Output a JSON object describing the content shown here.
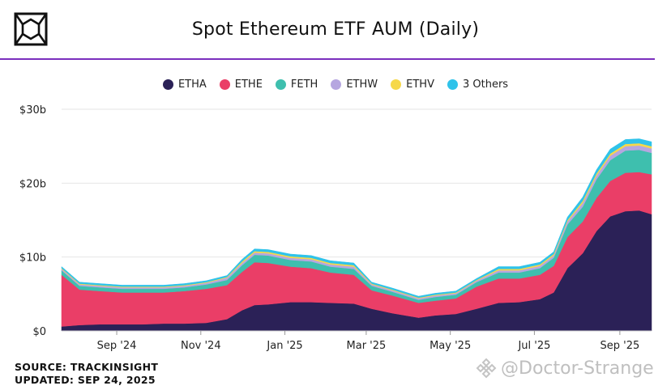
{
  "title": "Spot Ethereum ETF AUM (Daily)",
  "footer": {
    "source": "SOURCE: TRACKINSIGHT",
    "updated": "UPDATED: SEP 24, 2025"
  },
  "watermark": {
    "text": "@Doctor-Strange",
    "icon": "binance-logo-icon"
  },
  "logo_icon": "cube-logo-icon",
  "colors": {
    "accent_rule": "#7b2fbe",
    "grid": "#e6e6e6"
  },
  "chart_data": {
    "type": "area",
    "stacked": true,
    "title": "Spot Ethereum ETF AUM (Daily)",
    "legend_position": "top-center",
    "grid": true,
    "x_domain": [
      "2024-07-23",
      "2025-09-24"
    ],
    "ylim": [
      0,
      30
    ],
    "y_unit": "b",
    "y_ticks": [
      {
        "value": 0,
        "label": "$0"
      },
      {
        "value": 10,
        "label": "$10b"
      },
      {
        "value": 20,
        "label": "$20b"
      },
      {
        "value": 30,
        "label": "$30b"
      }
    ],
    "x_ticks": [
      {
        "date": "2024-09-01",
        "label": "Sep '24"
      },
      {
        "date": "2024-11-01",
        "label": "Nov '24"
      },
      {
        "date": "2025-01-01",
        "label": "Jan '25"
      },
      {
        "date": "2025-03-01",
        "label": "Mar '25"
      },
      {
        "date": "2025-05-01",
        "label": "May '25"
      },
      {
        "date": "2025-07-01",
        "label": "Jul '25"
      },
      {
        "date": "2025-09-01",
        "label": "Sep '25"
      }
    ],
    "dates": [
      "2024-07-23",
      "2024-08-05",
      "2024-08-20",
      "2024-09-05",
      "2024-09-20",
      "2024-10-05",
      "2024-10-20",
      "2024-11-05",
      "2024-11-20",
      "2024-12-01",
      "2024-12-10",
      "2024-12-20",
      "2025-01-05",
      "2025-01-20",
      "2025-02-03",
      "2025-02-20",
      "2025-03-05",
      "2025-03-20",
      "2025-04-08",
      "2025-04-20",
      "2025-05-05",
      "2025-05-20",
      "2025-06-05",
      "2025-06-20",
      "2025-07-05",
      "2025-07-15",
      "2025-07-25",
      "2025-08-05",
      "2025-08-15",
      "2025-08-25",
      "2025-09-05",
      "2025-09-15",
      "2025-09-24"
    ],
    "series": [
      {
        "name": "ETHA",
        "color": "#2b2157",
        "values": [
          0.6,
          0.8,
          0.9,
          0.9,
          0.9,
          1.0,
          1.0,
          1.1,
          1.6,
          2.8,
          3.5,
          3.6,
          3.9,
          3.9,
          3.8,
          3.7,
          3.0,
          2.4,
          1.8,
          2.1,
          2.3,
          3.0,
          3.8,
          3.9,
          4.3,
          5.2,
          8.5,
          10.5,
          13.5,
          15.5,
          16.2,
          16.3,
          15.8
        ]
      },
      {
        "name": "ETHE",
        "color": "#ea3e67",
        "values": [
          7.0,
          4.8,
          4.5,
          4.3,
          4.3,
          4.2,
          4.4,
          4.6,
          4.6,
          5.2,
          5.8,
          5.6,
          4.8,
          4.6,
          4.1,
          3.9,
          2.5,
          2.4,
          2.0,
          2.0,
          2.1,
          3.0,
          3.3,
          3.2,
          3.3,
          3.6,
          4.2,
          4.3,
          4.5,
          4.8,
          5.2,
          5.2,
          5.4
        ]
      },
      {
        "name": "FETH",
        "color": "#3ebfae",
        "values": [
          0.6,
          0.5,
          0.5,
          0.5,
          0.5,
          0.5,
          0.5,
          0.6,
          0.7,
          0.9,
          1.0,
          1.0,
          0.9,
          0.9,
          0.8,
          0.8,
          0.6,
          0.5,
          0.4,
          0.5,
          0.5,
          0.6,
          0.8,
          0.8,
          0.9,
          1.1,
          1.7,
          2.0,
          2.5,
          2.8,
          3.0,
          3.0,
          2.9
        ]
      },
      {
        "name": "ETHW",
        "color": "#b6a6e0",
        "values": [
          0.2,
          0.2,
          0.2,
          0.2,
          0.2,
          0.2,
          0.2,
          0.2,
          0.3,
          0.3,
          0.3,
          0.3,
          0.3,
          0.3,
          0.3,
          0.3,
          0.2,
          0.2,
          0.2,
          0.2,
          0.2,
          0.2,
          0.3,
          0.3,
          0.3,
          0.3,
          0.4,
          0.5,
          0.5,
          0.6,
          0.6,
          0.6,
          0.6
        ]
      },
      {
        "name": "ETHV",
        "color": "#f6d84a",
        "values": [
          0.1,
          0.1,
          0.1,
          0.1,
          0.1,
          0.1,
          0.1,
          0.1,
          0.1,
          0.2,
          0.2,
          0.2,
          0.2,
          0.2,
          0.2,
          0.2,
          0.1,
          0.1,
          0.1,
          0.1,
          0.1,
          0.1,
          0.2,
          0.2,
          0.2,
          0.2,
          0.2,
          0.3,
          0.3,
          0.3,
          0.3,
          0.3,
          0.3
        ]
      },
      {
        "name": "3 Others",
        "color": "#2fc3ea",
        "values": [
          0.2,
          0.2,
          0.2,
          0.2,
          0.2,
          0.2,
          0.2,
          0.2,
          0.2,
          0.3,
          0.3,
          0.3,
          0.3,
          0.3,
          0.3,
          0.3,
          0.2,
          0.2,
          0.2,
          0.2,
          0.2,
          0.2,
          0.3,
          0.3,
          0.3,
          0.3,
          0.4,
          0.5,
          0.5,
          0.6,
          0.6,
          0.6,
          0.6
        ]
      }
    ]
  }
}
